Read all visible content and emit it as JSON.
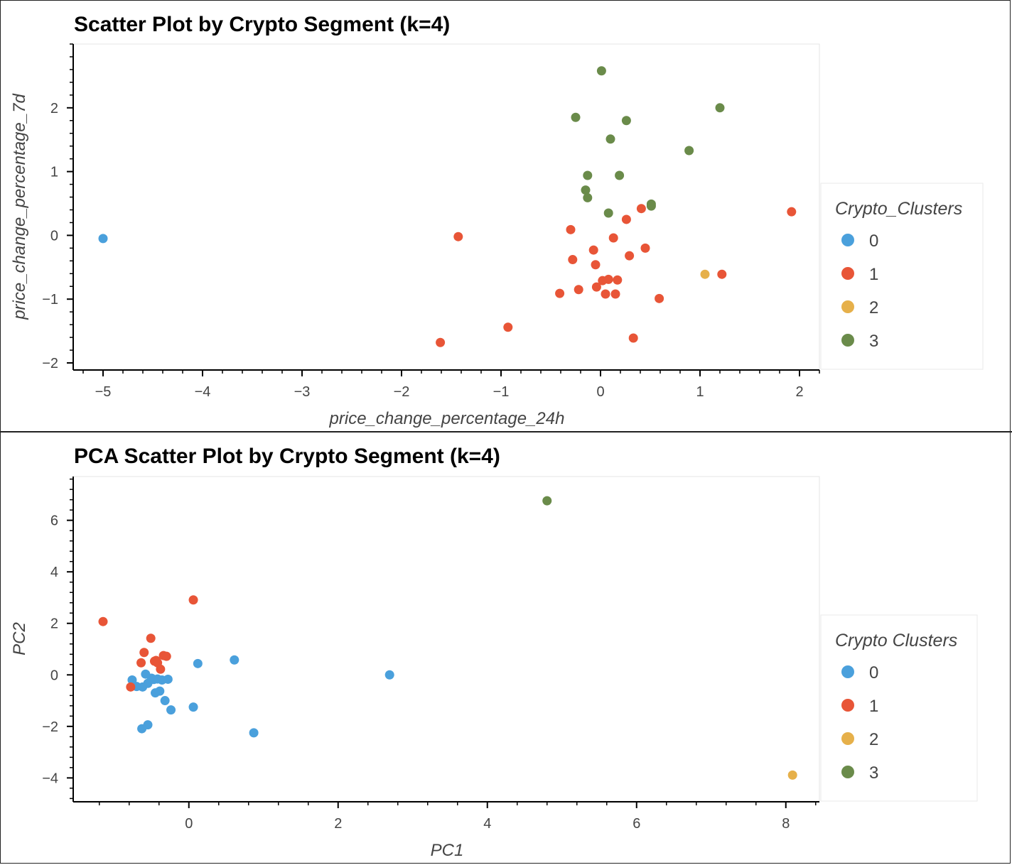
{
  "colors": {
    "cluster_0": "#4aa0dc",
    "cluster_1": "#e85537",
    "cluster_2": "#e6b04a",
    "cluster_3": "#6a8b4a"
  },
  "chart_data": [
    {
      "type": "scatter",
      "title": "Scatter Plot by Crypto Segment (k=4)",
      "xlabel": "price_change_percentage_24h",
      "ylabel": "price_change_percentage_7d",
      "xlim": [
        -5.3,
        2.2
      ],
      "ylim": [
        -2.1,
        3.0
      ],
      "xticks": [
        "−5",
        "−4",
        "−3",
        "−2",
        "−1",
        "0",
        "1",
        "2"
      ],
      "xtick_values": [
        -5,
        -4,
        -3,
        -2,
        -1,
        0,
        1,
        2
      ],
      "yticks": [
        "−2",
        "−1",
        "0",
        "1",
        "2"
      ],
      "ytick_values": [
        -2,
        -1,
        0,
        1,
        2
      ],
      "grid": false,
      "legend": {
        "title": "Crypto_Clusters",
        "entries": [
          "0",
          "1",
          "2",
          "3"
        ],
        "placement": "right"
      },
      "series": [
        {
          "name": "0",
          "points": [
            [
              -5.0,
              -0.05
            ]
          ]
        },
        {
          "name": "1",
          "points": [
            [
              -1.43,
              -0.02
            ],
            [
              -1.61,
              -1.68
            ],
            [
              -0.93,
              -1.44
            ],
            [
              -0.41,
              -0.91
            ],
            [
              -0.22,
              -0.85
            ],
            [
              -0.28,
              -0.38
            ],
            [
              -0.3,
              0.09
            ],
            [
              -0.07,
              -0.23
            ],
            [
              -0.05,
              -0.46
            ],
            [
              -0.04,
              -0.81
            ],
            [
              0.02,
              -0.71
            ],
            [
              0.08,
              -0.69
            ],
            [
              0.05,
              -0.92
            ],
            [
              0.13,
              -0.04
            ],
            [
              0.17,
              -0.7
            ],
            [
              0.15,
              -0.92
            ],
            [
              0.26,
              0.25
            ],
            [
              0.29,
              -0.32
            ],
            [
              0.33,
              -1.61
            ],
            [
              0.41,
              0.42
            ],
            [
              0.45,
              -0.2
            ],
            [
              0.59,
              -0.99
            ],
            [
              1.22,
              -0.61
            ],
            [
              1.92,
              0.37
            ]
          ]
        },
        {
          "name": "2",
          "points": [
            [
              1.05,
              -0.61
            ]
          ]
        },
        {
          "name": "3",
          "points": [
            [
              0.01,
              2.58
            ],
            [
              -0.25,
              1.85
            ],
            [
              0.26,
              1.8
            ],
            [
              0.1,
              1.51
            ],
            [
              1.2,
              2.0
            ],
            [
              0.89,
              1.33
            ],
            [
              -0.13,
              0.94
            ],
            [
              0.19,
              0.94
            ],
            [
              -0.15,
              0.71
            ],
            [
              -0.13,
              0.59
            ],
            [
              0.08,
              0.35
            ],
            [
              0.51,
              0.49
            ],
            [
              0.51,
              0.46
            ]
          ]
        }
      ]
    },
    {
      "type": "scatter",
      "title": "PCA Scatter Plot by Crypto Segment (k=4)",
      "xlabel": "PC1",
      "ylabel": "PC2",
      "xlim": [
        -1.55,
        8.45
      ],
      "ylim": [
        -4.9,
        7.7
      ],
      "xticks": [
        "0",
        "2",
        "4",
        "6",
        "8"
      ],
      "xtick_values": [
        0,
        2,
        4,
        6,
        8
      ],
      "yticks": [
        "−4",
        "−2",
        "0",
        "2",
        "4",
        "6"
      ],
      "ytick_values": [
        -4,
        -2,
        0,
        2,
        4,
        6
      ],
      "grid": false,
      "legend": {
        "title": "Crypto Clusters",
        "entries": [
          "0",
          "1",
          "2",
          "3"
        ],
        "placement": "right"
      },
      "series": [
        {
          "name": "0",
          "points": [
            [
              -0.76,
              -0.2
            ],
            [
              -0.7,
              -0.45
            ],
            [
              -0.62,
              -0.47
            ],
            [
              -0.58,
              0.03
            ],
            [
              -0.55,
              -0.33
            ],
            [
              -0.5,
              -0.13
            ],
            [
              -0.47,
              -0.18
            ],
            [
              -0.45,
              -0.7
            ],
            [
              -0.42,
              -0.16
            ],
            [
              -0.39,
              -0.63
            ],
            [
              -0.36,
              -0.2
            ],
            [
              -0.32,
              -1.0
            ],
            [
              -0.28,
              -0.17
            ],
            [
              -0.24,
              -1.36
            ],
            [
              -0.63,
              -2.09
            ],
            [
              -0.55,
              -1.94
            ],
            [
              0.06,
              -1.25
            ],
            [
              0.12,
              0.44
            ],
            [
              0.61,
              0.58
            ],
            [
              0.87,
              -2.25
            ],
            [
              2.69,
              0.0
            ]
          ]
        },
        {
          "name": "1",
          "points": [
            [
              -1.15,
              2.07
            ],
            [
              -0.78,
              -0.47
            ],
            [
              -0.64,
              0.47
            ],
            [
              -0.6,
              0.87
            ],
            [
              -0.51,
              1.42
            ],
            [
              -0.46,
              0.53
            ],
            [
              -0.44,
              0.56
            ],
            [
              -0.42,
              0.47
            ],
            [
              -0.38,
              0.22
            ],
            [
              -0.34,
              0.75
            ],
            [
              -0.3,
              0.72
            ],
            [
              0.06,
              2.91
            ]
          ]
        },
        {
          "name": "2",
          "points": [
            [
              8.09,
              -3.89
            ]
          ]
        },
        {
          "name": "3",
          "points": [
            [
              4.8,
              6.76
            ]
          ]
        }
      ]
    }
  ]
}
